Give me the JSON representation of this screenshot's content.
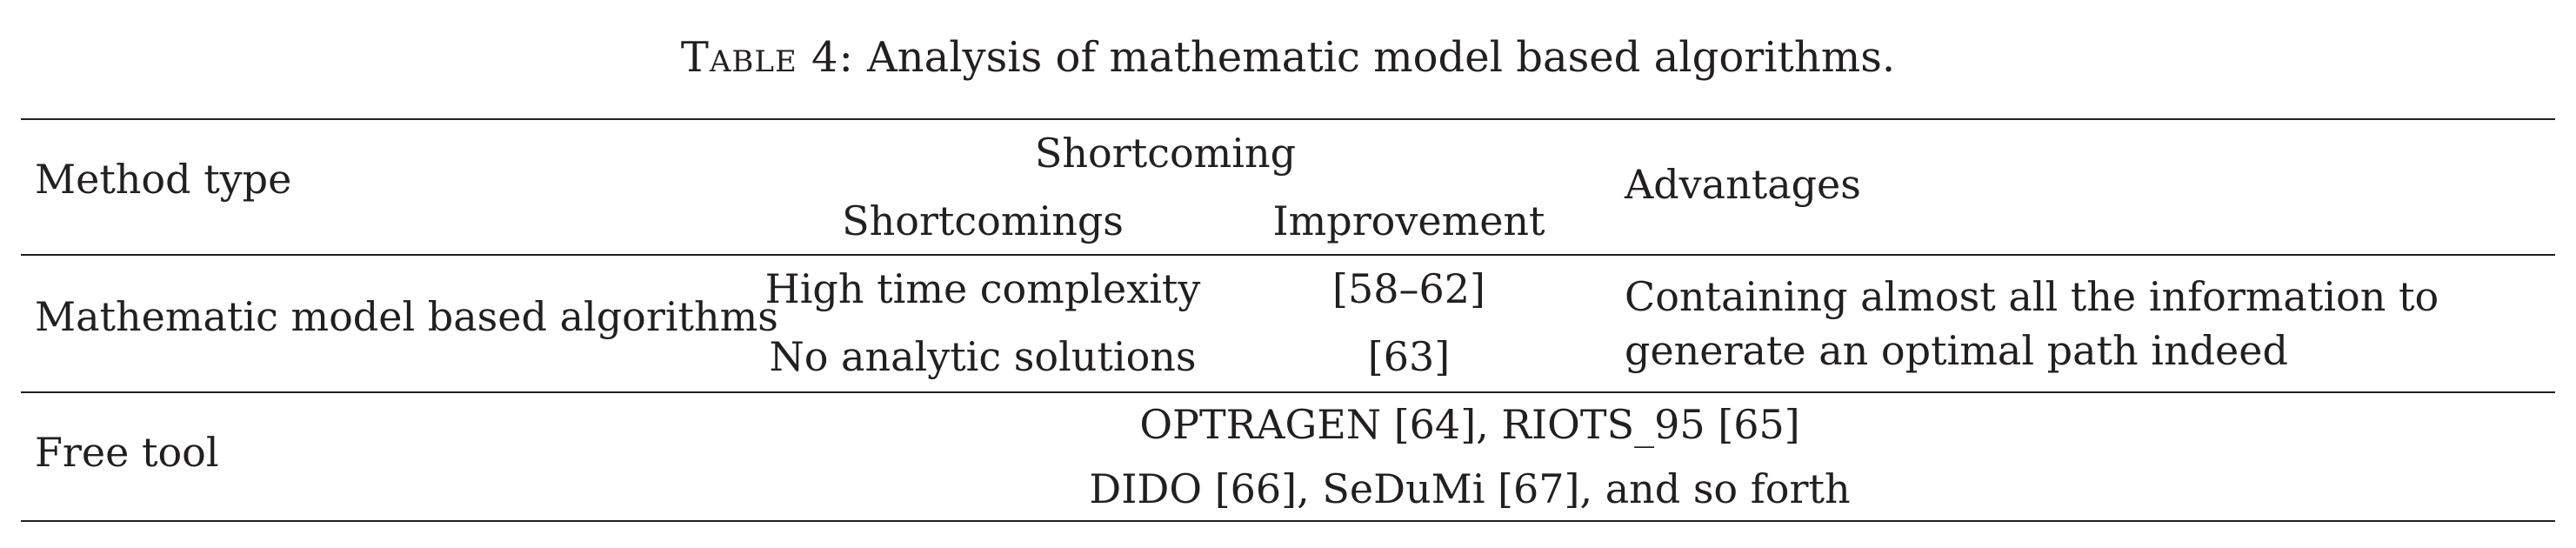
{
  "caption": {
    "label": "Table 4:",
    "text": " Analysis of mathematic model based algorithms."
  },
  "table": {
    "headers": {
      "method_type": "Method type",
      "shortcoming_group": "Shortcoming",
      "shortcomings": "Shortcomings",
      "improvement": "Improvement",
      "advantages": "Advantages"
    },
    "rows": [
      {
        "method_type": "Mathematic model based algorithms",
        "shortcomings": [
          "High time complexity",
          "No analytic solutions"
        ],
        "improvements": [
          "[58–62]",
          "[63]"
        ],
        "advantages": "Containing almost all the information to generate an optimal path indeed"
      },
      {
        "method_type": "Free tool",
        "tools": [
          "OPTRAGEN [64], RIOTS_95 [65]",
          "DIDO [66], SeDuMi [67], and so forth"
        ]
      }
    ]
  }
}
